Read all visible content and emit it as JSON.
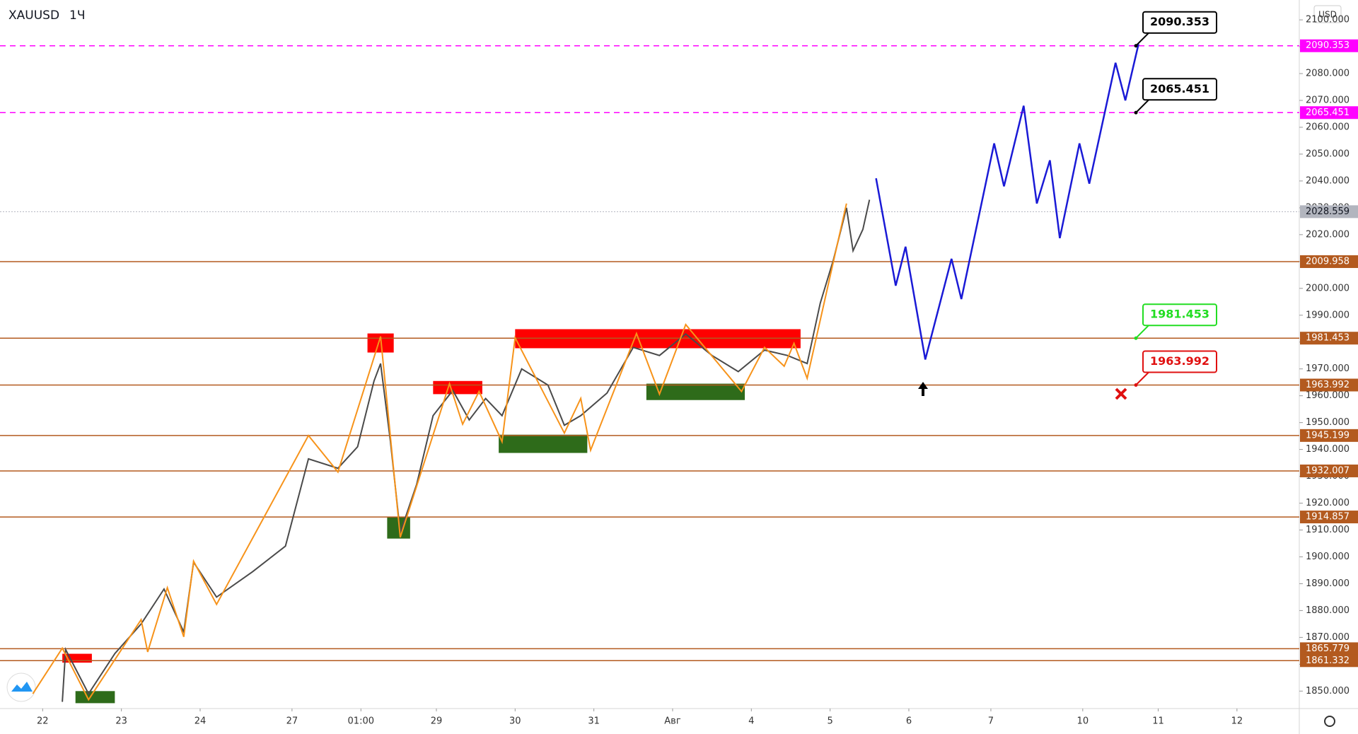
{
  "header": {
    "symbol": "XAUUSD",
    "interval": "1Ч",
    "currency": "USD"
  },
  "chart_data": {
    "type": "line",
    "xlim": [
      -13,
      383
    ],
    "xticks": [
      {
        "value": 0,
        "label": "22"
      },
      {
        "value": 24,
        "label": "23"
      },
      {
        "value": 48,
        "label": "24"
      },
      {
        "value": 76,
        "label": "27"
      },
      {
        "value": 97,
        "label": "01:00"
      },
      {
        "value": 120,
        "label": "29"
      },
      {
        "value": 144,
        "label": "30"
      },
      {
        "value": 168,
        "label": "31"
      },
      {
        "value": 192,
        "label": "Авг"
      },
      {
        "value": 216,
        "label": "4"
      },
      {
        "value": 240,
        "label": "5"
      },
      {
        "value": 264,
        "label": "6"
      },
      {
        "value": 289,
        "label": "7"
      },
      {
        "value": 317,
        "label": "10"
      },
      {
        "value": 340,
        "label": "11"
      },
      {
        "value": 364,
        "label": "12"
      }
    ],
    "ylim": [
      1843.5,
      2107.4
    ],
    "yticks": [
      {
        "value": 1850,
        "label": "1850.000"
      },
      {
        "value": 1860,
        "label": "1860.000"
      },
      {
        "value": 1870,
        "label": "1870.000"
      },
      {
        "value": 1880,
        "label": "1880.000"
      },
      {
        "value": 1890,
        "label": "1890.000"
      },
      {
        "value": 1900,
        "label": "1900.000"
      },
      {
        "value": 1910,
        "label": "1910.000"
      },
      {
        "value": 1920,
        "label": "1920.000"
      },
      {
        "value": 1930,
        "label": "1930.000"
      },
      {
        "value": 1940,
        "label": "1940.000"
      },
      {
        "value": 1950,
        "label": "1950.000"
      },
      {
        "value": 1960,
        "label": "1960.000"
      },
      {
        "value": 1970,
        "label": "1970.000"
      },
      {
        "value": 1980,
        "label": "1980.000"
      },
      {
        "value": 1990,
        "label": "1990.000"
      },
      {
        "value": 2000,
        "label": "2000.000"
      },
      {
        "value": 2010,
        "label": "2010.000"
      },
      {
        "value": 2020,
        "label": "2020.000"
      },
      {
        "value": 2030,
        "label": "2030.000"
      },
      {
        "value": 2040,
        "label": "2040.000"
      },
      {
        "value": 2050,
        "label": "2050.000"
      },
      {
        "value": 2060,
        "label": "2060.000"
      },
      {
        "value": 2070,
        "label": "2070.000"
      },
      {
        "value": 2080,
        "label": "2080.000"
      },
      {
        "value": 2090,
        "label": "2090.000"
      },
      {
        "value": 2100,
        "label": "2100.000"
      }
    ],
    "series": [
      {
        "color": "#4a4a4a",
        "x": [
          6,
          7,
          14,
          22,
          30,
          37,
          43,
          46,
          53,
          64,
          74,
          81,
          90,
          96,
          101,
          103,
          106,
          109,
          114,
          119,
          125,
          130,
          135,
          140,
          146,
          154,
          159,
          164,
          172,
          180,
          188,
          196,
          204,
          212,
          220,
          227,
          233,
          237,
          241,
          245,
          247,
          250,
          252
        ],
        "values": [
          1846,
          1865.5,
          1849,
          1864,
          1875,
          1888,
          1872,
          1898,
          1885,
          1894.5,
          1904,
          1936.5,
          1933,
          1941,
          1965.5,
          1972,
          1943,
          1909,
          1927,
          1952.6,
          1962,
          1951,
          1959,
          1952.6,
          1970,
          1964,
          1949,
          1952.6,
          1961,
          1978,
          1975,
          1983,
          1975,
          1969,
          1977,
          1975,
          1972,
          1994.5,
          2010.6,
          2030,
          2014,
          2022,
          2033
        ]
      },
      {
        "color": "#f7931a",
        "x": [
          -3,
          6,
          14,
          30,
          32,
          38,
          43,
          46,
          53,
          81,
          90,
          103,
          109,
          124,
          128,
          133,
          140,
          144,
          159,
          164,
          167,
          181,
          188,
          196,
          213,
          220,
          226,
          229,
          233,
          245
        ],
        "values": [
          1849,
          1866,
          1846.8,
          1876.6,
          1864.6,
          1888.5,
          1870.2,
          1898.4,
          1882.3,
          1945.2,
          1931.6,
          1982.1,
          1907.3,
          1964.5,
          1949.4,
          1961.6,
          1942.9,
          1981.6,
          1946.1,
          1959,
          1939.7,
          1983.2,
          1960.6,
          1986.5,
          1961.6,
          1978,
          1971,
          1979.5,
          1966.5,
          2031.6
        ]
      },
      {
        "color": "#1a1ad6",
        "x": [
          254,
          260,
          263,
          269,
          277,
          280,
          290,
          293,
          299,
          303,
          307,
          310,
          316,
          319,
          327,
          330,
          334
        ],
        "values": [
          2041,
          2001,
          2015.5,
          1973.5,
          2011,
          1996,
          2054,
          2038,
          2068,
          2031.6,
          2047.7,
          2018.7,
          2054,
          2039,
          2084,
          2070,
          2091
        ]
      }
    ],
    "zones": [
      {
        "start": 99,
        "end": 107,
        "top": 1983.2,
        "bottom": 1976.1,
        "color": "#ff0000"
      },
      {
        "start": 119,
        "end": 134,
        "top": 1965.5,
        "bottom": 1960.6,
        "color": "#ff0000"
      },
      {
        "start": 144,
        "end": 231,
        "top": 1984.8,
        "bottom": 1977.7,
        "color": "#ff0000"
      },
      {
        "start": 6,
        "end": 15,
        "top": 1863.9,
        "bottom": 1860.6,
        "color": "#ff0000"
      },
      {
        "start": 105,
        "end": 112,
        "top": 1914.8,
        "bottom": 1906.8,
        "color": "#2e6b1a"
      },
      {
        "start": 139,
        "end": 166,
        "top": 1945.5,
        "bottom": 1938.7,
        "color": "#2e6b1a"
      },
      {
        "start": 184,
        "end": 214,
        "top": 1964.5,
        "bottom": 1958.4,
        "color": "#2e6b1a"
      },
      {
        "start": 10,
        "end": 22,
        "top": 1850,
        "bottom": 1845.5,
        "color": "#2e6b1a"
      }
    ],
    "levels": [
      {
        "value": 2090.353,
        "color": "#ff00ff",
        "style": "dashed"
      },
      {
        "value": 2065.451,
        "color": "#ff00ff",
        "style": "dashed"
      },
      {
        "value": 2028.559,
        "color": "#b2b5be",
        "style": "dotted"
      },
      {
        "value": 2009.958,
        "color": "#b35a1f",
        "style": "solid"
      },
      {
        "value": 1981.453,
        "color": "#b35a1f",
        "style": "solid"
      },
      {
        "value": 1963.992,
        "color": "#b35a1f",
        "style": "solid"
      },
      {
        "value": 1945.199,
        "color": "#b35a1f",
        "style": "solid"
      },
      {
        "value": 1932.007,
        "color": "#b35a1f",
        "style": "solid"
      },
      {
        "value": 1914.857,
        "color": "#b35a1f",
        "style": "solid"
      },
      {
        "value": 1865.779,
        "color": "#b35a1f",
        "style": "solid"
      },
      {
        "value": 1861.332,
        "color": "#b35a1f",
        "style": "solid"
      }
    ],
    "callouts": [
      {
        "value": 2090.353,
        "color": "#000000"
      },
      {
        "value": 2065.451,
        "color": "#000000"
      },
      {
        "value": 1981.453,
        "color": "#22dd22"
      },
      {
        "value": 1963.992,
        "color": "#e01010"
      }
    ]
  }
}
